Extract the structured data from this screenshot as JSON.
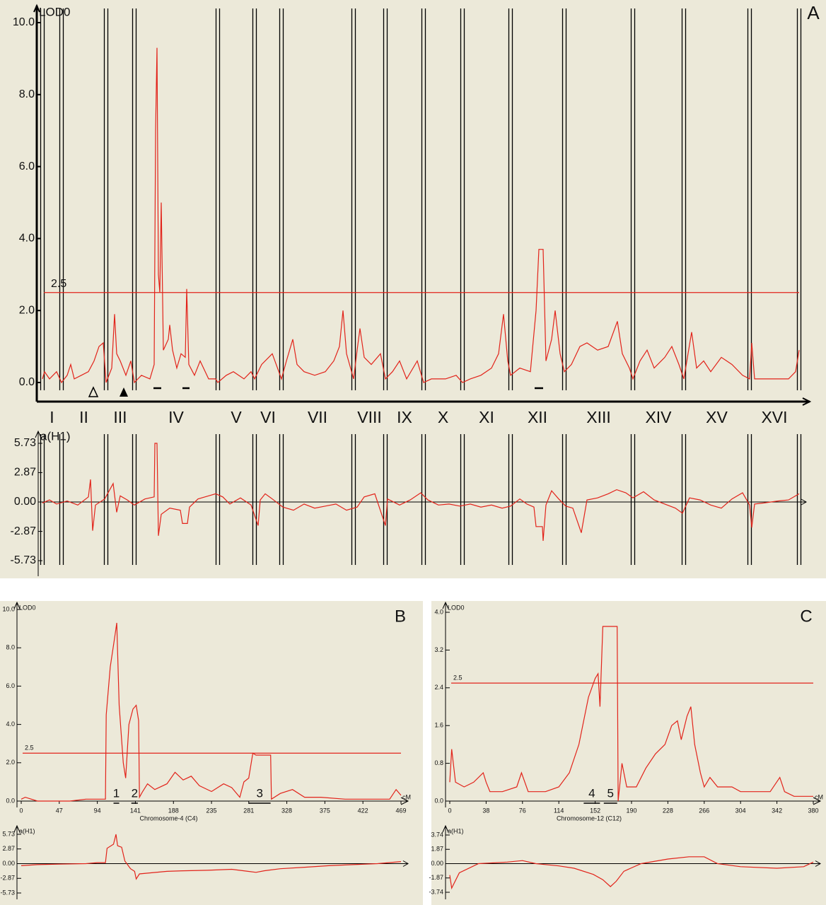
{
  "chart_data": [
    {
      "type": "line",
      "panel": "A",
      "y_label": "LOD0",
      "color": "#e2231a",
      "threshold": 2.5,
      "categories": [
        "I",
        "II",
        "III",
        "IV",
        "V",
        "VI",
        "VII",
        "VIII",
        "IX",
        "X",
        "XI",
        "XII",
        "XIII",
        "XIV",
        "XV",
        "XVI"
      ],
      "boundaries": [
        0,
        27,
        90,
        130,
        248,
        300,
        338,
        440,
        485,
        539,
        594,
        662,
        738,
        835,
        907,
        1000,
        1070
      ],
      "xlim": [
        0,
        1070
      ],
      "ylim": [
        0,
        10
      ],
      "yticks": [
        {
          "value": 0,
          "label": "0.0"
        },
        {
          "value": 2,
          "label": "2.0"
        },
        {
          "value": 4,
          "label": "4.0"
        },
        {
          "value": 6,
          "label": "6.0"
        },
        {
          "value": 8,
          "label": "8.0"
        },
        {
          "value": 10,
          "label": "10.0"
        }
      ],
      "x": [
        0,
        3,
        10,
        20,
        27,
        35,
        40,
        45,
        55,
        65,
        73,
        80,
        86,
        90,
        98,
        102,
        105,
        110,
        118,
        125,
        130,
        140,
        152,
        158,
        160,
        162,
        164,
        166,
        168,
        171,
        178,
        180,
        184,
        190,
        196,
        202,
        204,
        207,
        215,
        223,
        235,
        245,
        248,
        260,
        270,
        285,
        295,
        300,
        310,
        325,
        338,
        345,
        354,
        360,
        370,
        385,
        400,
        412,
        420,
        425,
        430,
        440,
        445,
        449,
        455,
        465,
        478,
        485,
        495,
        505,
        515,
        530,
        539,
        550,
        570,
        585,
        594,
        605,
        620,
        635,
        645,
        652,
        658,
        662,
        675,
        690,
        698,
        702,
        708,
        712,
        720,
        725,
        732,
        738,
        748,
        760,
        770,
        785,
        800,
        813,
        820,
        830,
        835,
        845,
        855,
        865,
        880,
        890,
        900,
        907,
        918,
        925,
        935,
        945,
        960,
        975,
        990,
        1000,
        1003,
        1007,
        1020,
        1040,
        1055,
        1065,
        1070
      ],
      "values": [
        0.1,
        0.3,
        0.1,
        0.3,
        0.0,
        0.2,
        0.5,
        0.1,
        0.2,
        0.3,
        0.6,
        1.0,
        1.1,
        0.0,
        0.4,
        1.9,
        0.8,
        0.6,
        0.2,
        0.6,
        0.0,
        0.2,
        0.1,
        0.5,
        7.0,
        9.3,
        3.0,
        2.5,
        5.0,
        0.9,
        1.2,
        1.6,
        0.9,
        0.4,
        0.8,
        0.7,
        2.6,
        0.5,
        0.2,
        0.6,
        0.1,
        0.1,
        0.0,
        0.2,
        0.3,
        0.1,
        0.3,
        0.1,
        0.5,
        0.8,
        0.1,
        0.6,
        1.2,
        0.5,
        0.3,
        0.2,
        0.3,
        0.6,
        1.0,
        2.0,
        0.8,
        0.1,
        0.9,
        1.5,
        0.7,
        0.5,
        0.8,
        0.1,
        0.3,
        0.6,
        0.1,
        0.6,
        0.0,
        0.1,
        0.1,
        0.2,
        0.0,
        0.1,
        0.2,
        0.4,
        0.8,
        1.9,
        0.6,
        0.2,
        0.4,
        0.3,
        2.0,
        3.7,
        3.7,
        0.6,
        1.2,
        2.0,
        0.8,
        0.3,
        0.5,
        1.0,
        1.1,
        0.9,
        1.0,
        1.7,
        0.8,
        0.4,
        0.1,
        0.6,
        0.9,
        0.4,
        0.7,
        1.0,
        0.5,
        0.1,
        1.4,
        0.4,
        0.6,
        0.3,
        0.7,
        0.5,
        0.2,
        0.1,
        1.1,
        0.1,
        0.1,
        0.1,
        0.1,
        0.3,
        0.9
      ]
    },
    {
      "type": "line",
      "y_label": "a(H1)",
      "color": "#e2231a",
      "xlim": [
        0,
        1070
      ],
      "ylim": [
        -5.73,
        5.73
      ],
      "yticks": [
        -5.73,
        -2.87,
        {
          "value": 0,
          "label": "0.00"
        },
        2.87,
        5.73
      ],
      "x": [
        0,
        10,
        20,
        35,
        50,
        65,
        68,
        71,
        75,
        88,
        100,
        105,
        110,
        120,
        130,
        145,
        158,
        159,
        162,
        164,
        168,
        180,
        195,
        198,
        205,
        208,
        220,
        235,
        245,
        255,
        265,
        280,
        295,
        305,
        308,
        315,
        325,
        340,
        355,
        370,
        385,
        400,
        415,
        430,
        445,
        455,
        470,
        485,
        488,
        505,
        520,
        535,
        545,
        560,
        575,
        590,
        605,
        620,
        635,
        650,
        662,
        675,
        685,
        695,
        698,
        707,
        708,
        712,
        720,
        730,
        740,
        750,
        762,
        770,
        785,
        800,
        812,
        825,
        835,
        850,
        865,
        880,
        895,
        905,
        915,
        930,
        945,
        960,
        975,
        990,
        1000,
        1003,
        1007,
        1020,
        1040,
        1055,
        1070
      ],
      "values": [
        -0.1,
        0.2,
        -0.2,
        0.1,
        -0.3,
        0.5,
        2.2,
        -2.8,
        -0.3,
        0.3,
        1.8,
        -1.0,
        0.6,
        0.2,
        -0.3,
        0.3,
        0.5,
        5.73,
        5.73,
        -3.3,
        -1.2,
        -0.6,
        -0.8,
        -2.1,
        -2.1,
        -0.5,
        0.3,
        0.6,
        0.8,
        0.5,
        -0.2,
        0.4,
        -0.3,
        -2.3,
        0.2,
        0.8,
        0.3,
        -0.5,
        -0.8,
        -0.2,
        -0.6,
        -0.4,
        -0.2,
        -0.8,
        -0.5,
        0.5,
        0.8,
        -2.3,
        0.3,
        -0.3,
        0.2,
        0.9,
        0.2,
        -0.3,
        -0.2,
        -0.4,
        -0.2,
        -0.5,
        -0.3,
        -0.6,
        -0.4,
        0.3,
        -0.2,
        -0.5,
        -2.4,
        -2.4,
        -3.8,
        -0.3,
        1.1,
        0.3,
        -0.4,
        -0.6,
        -3.0,
        0.2,
        0.4,
        0.8,
        1.2,
        0.9,
        0.4,
        1.0,
        0.2,
        -0.2,
        -0.6,
        -1.1,
        0.4,
        0.2,
        -0.3,
        -0.6,
        0.3,
        0.9,
        -0.3,
        -2.5,
        -0.2,
        -0.1,
        0.1,
        0.2,
        0.8
      ]
    },
    {
      "type": "line",
      "panel": "B",
      "y_label": "LOD0",
      "x_label": "Chromosome-4 (C4)",
      "x_unit": "cM",
      "color": "#e2231a",
      "threshold": 2.5,
      "xlim": [
        0,
        469
      ],
      "ylim": [
        0,
        10
      ],
      "xticks": [
        0,
        47,
        94,
        141,
        188,
        235,
        281,
        328,
        375,
        422,
        469
      ],
      "yticks": [
        {
          "value": 0,
          "label": "0.0"
        },
        {
          "value": 2,
          "label": "2.0"
        },
        {
          "value": 4,
          "label": "4.0"
        },
        {
          "value": 6,
          "label": "6.0"
        },
        {
          "value": 8,
          "label": "8.0"
        },
        {
          "value": 10,
          "label": "10.0"
        }
      ],
      "intervals": [
        {
          "label": "1",
          "start": 114,
          "end": 121
        },
        {
          "label": "2",
          "start": 136,
          "end": 144
        },
        {
          "label": "3",
          "start": 281,
          "end": 308
        }
      ],
      "x": [
        0,
        5,
        20,
        40,
        60,
        80,
        100,
        104,
        105,
        110,
        116,
        118,
        121,
        126,
        129,
        133,
        138,
        142,
        145,
        146,
        150,
        156,
        165,
        180,
        190,
        200,
        210,
        220,
        235,
        250,
        260,
        270,
        275,
        281,
        286,
        290,
        308,
        309,
        320,
        335,
        350,
        370,
        400,
        430,
        455,
        463,
        469
      ],
      "values": [
        0.1,
        0.2,
        0.0,
        0.0,
        0.0,
        0.1,
        0.1,
        0.1,
        4.5,
        7.0,
        8.7,
        9.3,
        5.0,
        2.0,
        1.2,
        4.0,
        4.8,
        5.0,
        4.2,
        0.2,
        0.5,
        0.9,
        0.6,
        0.9,
        1.5,
        1.1,
        1.3,
        0.8,
        0.5,
        0.9,
        0.7,
        0.2,
        1.0,
        1.2,
        2.5,
        2.4,
        2.4,
        0.1,
        0.4,
        0.6,
        0.2,
        0.2,
        0.1,
        0.1,
        0.1,
        0.6,
        0.3
      ]
    },
    {
      "type": "line",
      "y_label": "a(H1)",
      "color": "#e2231a",
      "xlim": [
        0,
        469
      ],
      "ylim": [
        -5.73,
        5.73
      ],
      "yticks": [
        -5.73,
        -2.87,
        {
          "value": 0,
          "label": "0.00"
        },
        2.87,
        5.73
      ],
      "x": [
        0,
        20,
        47,
        80,
        94,
        104,
        106,
        114,
        117,
        119,
        124,
        128,
        135,
        140,
        142,
        146,
        160,
        180,
        200,
        230,
        260,
        280,
        290,
        300,
        320,
        350,
        380,
        410,
        440,
        469
      ],
      "values": [
        -0.4,
        -0.2,
        -0.1,
        0.0,
        0.2,
        0.2,
        3.0,
        3.8,
        5.73,
        3.5,
        3.2,
        0.5,
        -1.0,
        -1.5,
        -3.0,
        -2.0,
        -1.8,
        -1.5,
        -1.4,
        -1.3,
        -1.1,
        -1.5,
        -1.7,
        -1.4,
        -1.0,
        -0.7,
        -0.4,
        -0.2,
        0.0,
        0.4
      ]
    },
    {
      "type": "line",
      "panel": "C",
      "y_label": "LOD0",
      "x_label": "Chromosome-12 (C12)",
      "x_unit": "cM",
      "color": "#e2231a",
      "threshold": 2.5,
      "xlim": [
        0,
        380
      ],
      "ylim": [
        0,
        4
      ],
      "xticks": [
        0,
        38,
        76,
        114,
        152,
        190,
        228,
        266,
        304,
        342,
        380
      ],
      "yticks": [
        {
          "value": 0,
          "label": "0.0"
        },
        0.8,
        1.6,
        2.4,
        3.2,
        {
          "value": 4,
          "label": "4.0"
        }
      ],
      "intervals": [
        {
          "label": "4",
          "start": 140,
          "end": 157
        },
        {
          "label": "5",
          "start": 161,
          "end": 175
        }
      ],
      "x": [
        0,
        2,
        6,
        15,
        25,
        35,
        38,
        42,
        55,
        70,
        75,
        82,
        100,
        114,
        125,
        135,
        145,
        152,
        155,
        157,
        160,
        170,
        175,
        176,
        180,
        185,
        195,
        205,
        215,
        225,
        232,
        238,
        242,
        248,
        252,
        256,
        262,
        266,
        272,
        280,
        295,
        304,
        320,
        335,
        345,
        350,
        360,
        380
      ],
      "values": [
        0.4,
        1.1,
        0.4,
        0.3,
        0.4,
        0.6,
        0.4,
        0.2,
        0.2,
        0.3,
        0.6,
        0.2,
        0.2,
        0.3,
        0.6,
        1.2,
        2.2,
        2.6,
        2.7,
        2.0,
        3.7,
        3.7,
        3.7,
        0.0,
        0.8,
        0.3,
        0.3,
        0.7,
        1.0,
        1.2,
        1.6,
        1.7,
        1.3,
        1.8,
        2.0,
        1.2,
        0.6,
        0.3,
        0.5,
        0.3,
        0.3,
        0.2,
        0.2,
        0.2,
        0.5,
        0.2,
        0.1,
        0.1
      ]
    },
    {
      "type": "line",
      "y_label": "a(H1)",
      "color": "#e2231a",
      "xlim": [
        0,
        380
      ],
      "ylim": [
        -3.74,
        3.74
      ],
      "yticks": [
        -3.74,
        -1.87,
        {
          "value": 0,
          "label": "0.00"
        },
        1.87,
        3.74
      ],
      "x": [
        0,
        2,
        10,
        30,
        60,
        76,
        90,
        114,
        130,
        150,
        160,
        168,
        174,
        182,
        200,
        228,
        250,
        266,
        280,
        304,
        342,
        370,
        380
      ],
      "values": [
        -1.5,
        -3.2,
        -1.2,
        0.0,
        0.2,
        0.4,
        0.0,
        -0.3,
        -0.6,
        -1.4,
        -2.1,
        -3.0,
        -2.3,
        -1.0,
        0.0,
        0.6,
        0.9,
        0.9,
        0.0,
        -0.4,
        -0.6,
        -0.4,
        0.2
      ]
    }
  ]
}
